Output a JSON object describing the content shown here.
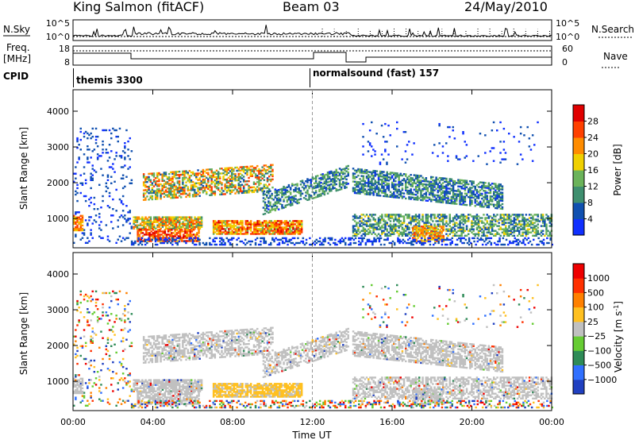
{
  "header": {
    "station": "King Salmon (fitACF)",
    "beam": "Beam 03",
    "date": "24/May/2010"
  },
  "status_panels": {
    "nsky_label": "N.Sky",
    "nsearch_label": "N.Search",
    "freq_label_1": "Freq.",
    "freq_label_2": "[MHz]",
    "nave_label": "Nave",
    "cpid_label": "CPID",
    "left_ticks": [
      "10^5",
      "10^0",
      "18",
      "8"
    ],
    "right_ticks": [
      "10^5",
      "10^0",
      "60",
      "0"
    ]
  },
  "cpid_segments": [
    {
      "label": "themis 3300",
      "start_hour": 0
    },
    {
      "label": "normalsound (fast) 157",
      "start_hour": 12
    }
  ],
  "chart_data": [
    {
      "type": "heatmap",
      "name": "power-panel",
      "xlabel": "",
      "ylabel": "Slant Range [km]",
      "xlim": [
        0,
        24
      ],
      "ylim": [
        180,
        4600
      ],
      "yticks": [
        "1000",
        "2000",
        "3000",
        "4000"
      ],
      "colorbar_label": "Power [dB]",
      "colorbar_ticks": [
        "4",
        "8",
        "12",
        "16",
        "20",
        "24",
        "28"
      ],
      "colorbar_colors": [
        "#1030ff",
        "#1050b0",
        "#3f8f6f",
        "#6bb35a",
        "#f0d000",
        "#ff8c00",
        "#ff4000",
        "#e00000"
      ]
    },
    {
      "type": "heatmap",
      "name": "velocity-panel",
      "xlabel": "Time UT",
      "ylabel": "Slant Range [km]",
      "xlim": [
        0,
        24
      ],
      "ylim": [
        180,
        4600
      ],
      "xticks": [
        "00:00",
        "04:00",
        "08:00",
        "12:00",
        "16:00",
        "20:00",
        "00:00"
      ],
      "yticks": [
        "1000",
        "2000",
        "3000",
        "4000"
      ],
      "colorbar_label": "Velocity [m s^-1]",
      "colorbar_ticks": [
        "1000",
        "500",
        "100",
        "25",
        "−25",
        "−100",
        "−500",
        "−1000"
      ],
      "colorbar_colors": [
        "#2040c0",
        "#3070ff",
        "#2e8b57",
        "#66cc33",
        "#c0c0c0",
        "#ffc020",
        "#ff8000",
        "#ff3000",
        "#ee0000"
      ]
    }
  ]
}
